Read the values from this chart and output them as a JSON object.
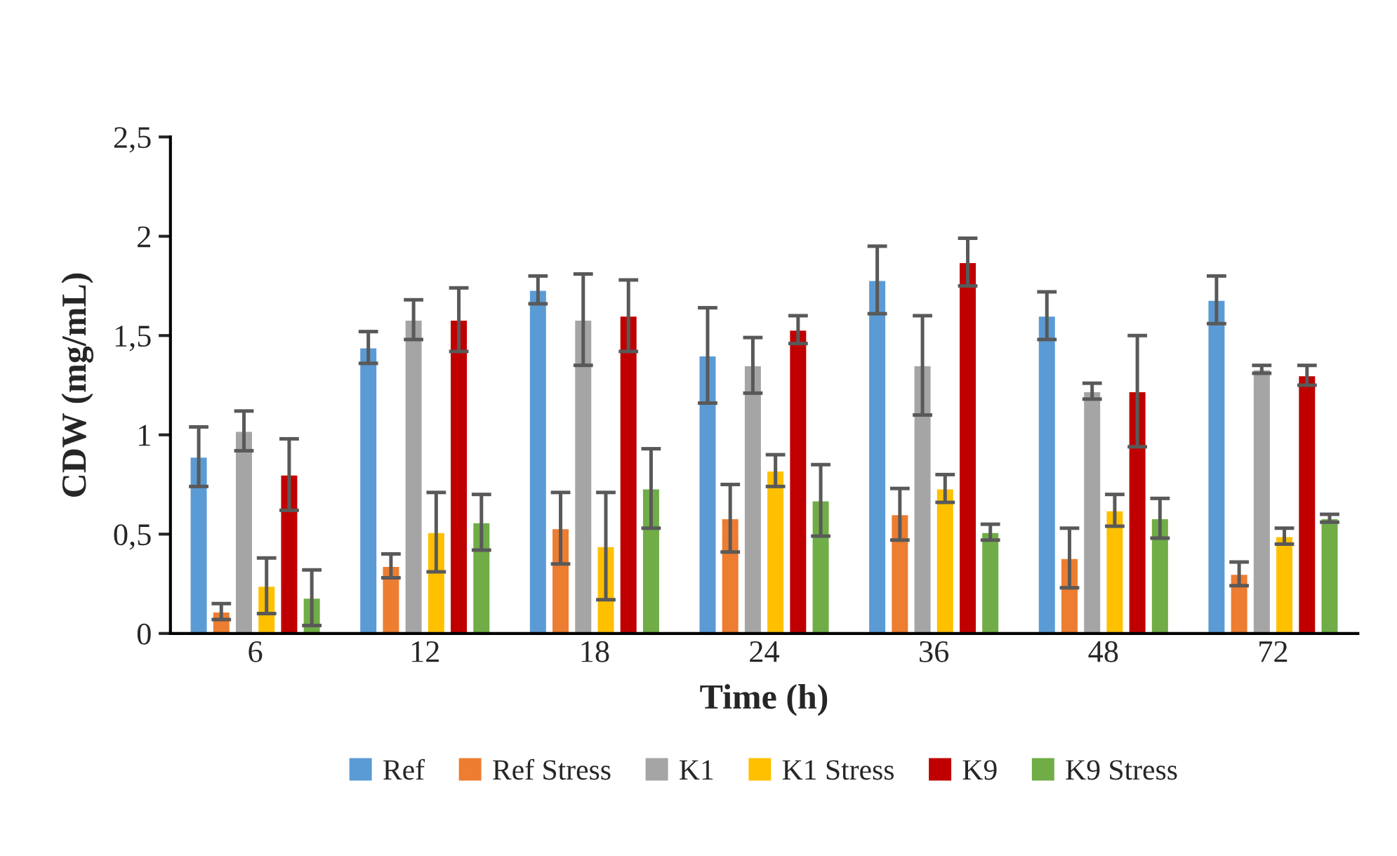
{
  "chart_data": {
    "type": "bar",
    "xlabel": "Time (h)",
    "ylabel": "CDW (mg/mL)",
    "categories": [
      "6",
      "12",
      "18",
      "24",
      "36",
      "48",
      "72"
    ],
    "series": [
      {
        "name": "Ref",
        "color": "#5b9bd5",
        "values": [
          0.89,
          1.44,
          1.73,
          1.4,
          1.78,
          1.6,
          1.68
        ],
        "errors": [
          0.15,
          0.08,
          0.07,
          0.24,
          0.17,
          0.12,
          0.12
        ]
      },
      {
        "name": "Ref Stress",
        "color": "#ed7d31",
        "values": [
          0.11,
          0.34,
          0.53,
          0.58,
          0.6,
          0.38,
          0.3
        ],
        "errors": [
          0.04,
          0.06,
          0.18,
          0.17,
          0.13,
          0.15,
          0.06
        ]
      },
      {
        "name": "K1",
        "color": "#a5a5a5",
        "values": [
          1.02,
          1.58,
          1.58,
          1.35,
          1.35,
          1.22,
          1.33
        ],
        "errors": [
          0.1,
          0.1,
          0.23,
          0.14,
          0.25,
          0.04,
          0.02
        ]
      },
      {
        "name": "K1 Stress",
        "color": "#ffc000",
        "values": [
          0.24,
          0.51,
          0.44,
          0.82,
          0.73,
          0.62,
          0.49
        ],
        "errors": [
          0.14,
          0.2,
          0.27,
          0.08,
          0.07,
          0.08,
          0.04
        ]
      },
      {
        "name": "K9",
        "color": "#c00000",
        "values": [
          0.8,
          1.58,
          1.6,
          1.53,
          1.87,
          1.22,
          1.3
        ],
        "errors": [
          0.18,
          0.16,
          0.18,
          0.07,
          0.12,
          0.28,
          0.05
        ]
      },
      {
        "name": "K9 Stress",
        "color": "#70ad47",
        "values": [
          0.18,
          0.56,
          0.73,
          0.67,
          0.51,
          0.58,
          0.58
        ],
        "errors": [
          0.14,
          0.14,
          0.2,
          0.18,
          0.04,
          0.1,
          0.02
        ]
      }
    ],
    "ylim": [
      0,
      2.5
    ],
    "yticks": [
      0,
      {
        "value": 0.5,
        "label": "0,5"
      },
      1,
      {
        "value": 1.5,
        "label": "1,5"
      },
      2,
      {
        "value": 2.5,
        "label": "2,5"
      }
    ],
    "grid": false,
    "legend": "bottom"
  }
}
